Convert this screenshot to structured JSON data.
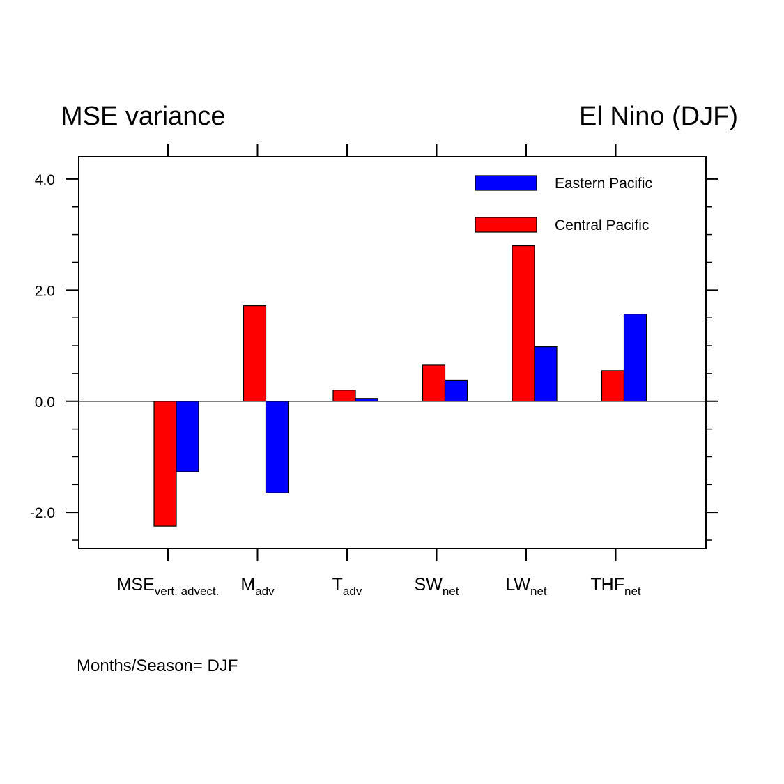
{
  "titles": {
    "left": "MSE variance",
    "right": "El Nino  (DJF)"
  },
  "footnote": "Months/Season= DJF",
  "chart_data": {
    "type": "bar",
    "categories": [
      {
        "main": "MSE",
        "sub": "vert. advect."
      },
      {
        "main": "M",
        "sub": "adv"
      },
      {
        "main": "T",
        "sub": "adv"
      },
      {
        "main": "SW",
        "sub": "net"
      },
      {
        "main": "LW",
        "sub": "net"
      },
      {
        "main": "THF",
        "sub": "net"
      }
    ],
    "series": [
      {
        "name": "Central Pacific",
        "color": "#ff0000",
        "values": [
          -2.25,
          1.72,
          0.2,
          0.65,
          2.8,
          0.55
        ]
      },
      {
        "name": "Eastern Pacific",
        "color": "#0000ff",
        "values": [
          -1.27,
          -1.65,
          0.05,
          0.38,
          0.98,
          1.57
        ]
      }
    ],
    "legend": {
      "placement": "top-right",
      "order": [
        "Eastern Pacific",
        "Central Pacific"
      ]
    },
    "ylim": [
      -2.65,
      4.4
    ],
    "yticks": [
      "4.0",
      "2.0",
      "0.0",
      "-2.0"
    ],
    "ytick_values": [
      4,
      2,
      0,
      -2
    ],
    "grid": false,
    "zero_line": true
  }
}
